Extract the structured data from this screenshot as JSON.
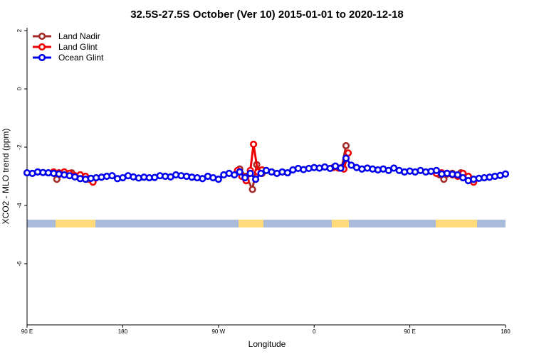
{
  "chart_data": {
    "type": "line",
    "title": "32.5S-27.5S October (Ver 10)   2015-01-01 to 2020-12-18",
    "xlabel": "Longitude",
    "ylabel": "XCO2 - MLO trend (ppm)",
    "xlim": [
      90,
      540
    ],
    "xticks": [
      {
        "value": 90,
        "label": "90 E"
      },
      180,
      {
        "value": 270,
        "label": "90 W"
      },
      {
        "value": 360,
        "label": "0"
      },
      {
        "value": 450,
        "label": "90 E"
      },
      {
        "value": 540,
        "label": "180"
      }
    ],
    "ylim": [
      -8.1,
      2.1
    ],
    "yticks": [
      2,
      0,
      -2,
      -4,
      -6
    ],
    "legend": "top-left",
    "series": [
      {
        "name": "Land Nadir",
        "color": "#a52a2a",
        "x": [
          118,
          125,
          132,
          140,
          148,
          220,
          290,
          296,
          302,
          306,
          311,
          350,
          386,
          390,
          430,
          478,
          482,
          490,
          498,
          506
        ],
        "values": [
          -3.1,
          -2.9,
          -2.88,
          -2.95,
          -3.1,
          null,
          -2.75,
          -3.0,
          -3.45,
          -2.6,
          -2.9,
          null,
          -2.7,
          -1.95,
          null,
          -2.95,
          -3.1,
          -2.9,
          -2.88,
          -3.05
        ]
      },
      {
        "name": "Land Glint",
        "color": "#ee0000",
        "x": [
          115,
          120,
          125,
          130,
          135,
          140,
          145,
          152,
          220,
          288,
          292,
          296,
          300,
          303,
          307,
          311,
          350,
          378,
          383,
          388,
          392,
          430,
          475,
          480,
          485,
          490,
          495,
          500,
          505,
          510
        ],
        "values": [
          -2.85,
          -2.88,
          -2.85,
          -2.9,
          -2.98,
          -2.95,
          -3.0,
          -3.2,
          null,
          -2.8,
          -3.0,
          -3.15,
          -2.8,
          -1.9,
          -2.85,
          -2.78,
          null,
          -2.7,
          -2.72,
          -2.75,
          -2.2,
          null,
          -2.9,
          -2.88,
          -2.9,
          -2.95,
          -3.0,
          -2.9,
          -3.0,
          -3.2
        ]
      },
      {
        "name": "Ocean Glint",
        "color": "#0000ee",
        "x": [
          90,
          95,
          100,
          105,
          110,
          115,
          120,
          125,
          130,
          135,
          140,
          145,
          150,
          155,
          160,
          165,
          170,
          175,
          180,
          185,
          190,
          195,
          200,
          205,
          210,
          215,
          220,
          225,
          230,
          235,
          240,
          245,
          250,
          255,
          260,
          265,
          270,
          275,
          280,
          285,
          290,
          295,
          300,
          305,
          310,
          315,
          320,
          325,
          330,
          335,
          340,
          345,
          350,
          355,
          360,
          365,
          370,
          375,
          380,
          385,
          390,
          395,
          400,
          405,
          410,
          415,
          420,
          425,
          430,
          435,
          440,
          445,
          450,
          455,
          460,
          465,
          470,
          475,
          480,
          485,
          490,
          495,
          500,
          505,
          510,
          515,
          520,
          525,
          530,
          535,
          540
        ],
        "values": [
          -2.88,
          -2.9,
          -2.85,
          -2.87,
          -2.88,
          -2.9,
          -2.92,
          -2.95,
          -2.98,
          -3.02,
          -3.08,
          -3.1,
          -3.07,
          -3.05,
          -3.03,
          -3.0,
          -2.98,
          -3.08,
          -3.05,
          -2.98,
          -3.02,
          -3.06,
          -3.03,
          -3.05,
          -3.04,
          -2.98,
          -3.0,
          -3.02,
          -2.95,
          -2.98,
          -3.0,
          -3.03,
          -3.05,
          -3.08,
          -3.0,
          -3.05,
          -3.1,
          -2.95,
          -2.9,
          -2.95,
          -2.85,
          -3.05,
          -2.9,
          -3.1,
          -2.9,
          -2.8,
          -2.85,
          -2.9,
          -2.85,
          -2.88,
          -2.78,
          -2.73,
          -2.77,
          -2.73,
          -2.7,
          -2.72,
          -2.68,
          -2.73,
          -2.65,
          -2.72,
          -2.38,
          -2.62,
          -2.7,
          -2.75,
          -2.72,
          -2.75,
          -2.78,
          -2.75,
          -2.8,
          -2.72,
          -2.8,
          -2.85,
          -2.82,
          -2.85,
          -2.8,
          -2.85,
          -2.83,
          -2.8,
          -2.92,
          -2.9,
          -2.93,
          -2.95,
          -3.05,
          -3.15,
          -3.1,
          -3.07,
          -3.05,
          -3.03,
          -3.0,
          -2.97,
          -2.92
        ]
      }
    ]
  }
}
